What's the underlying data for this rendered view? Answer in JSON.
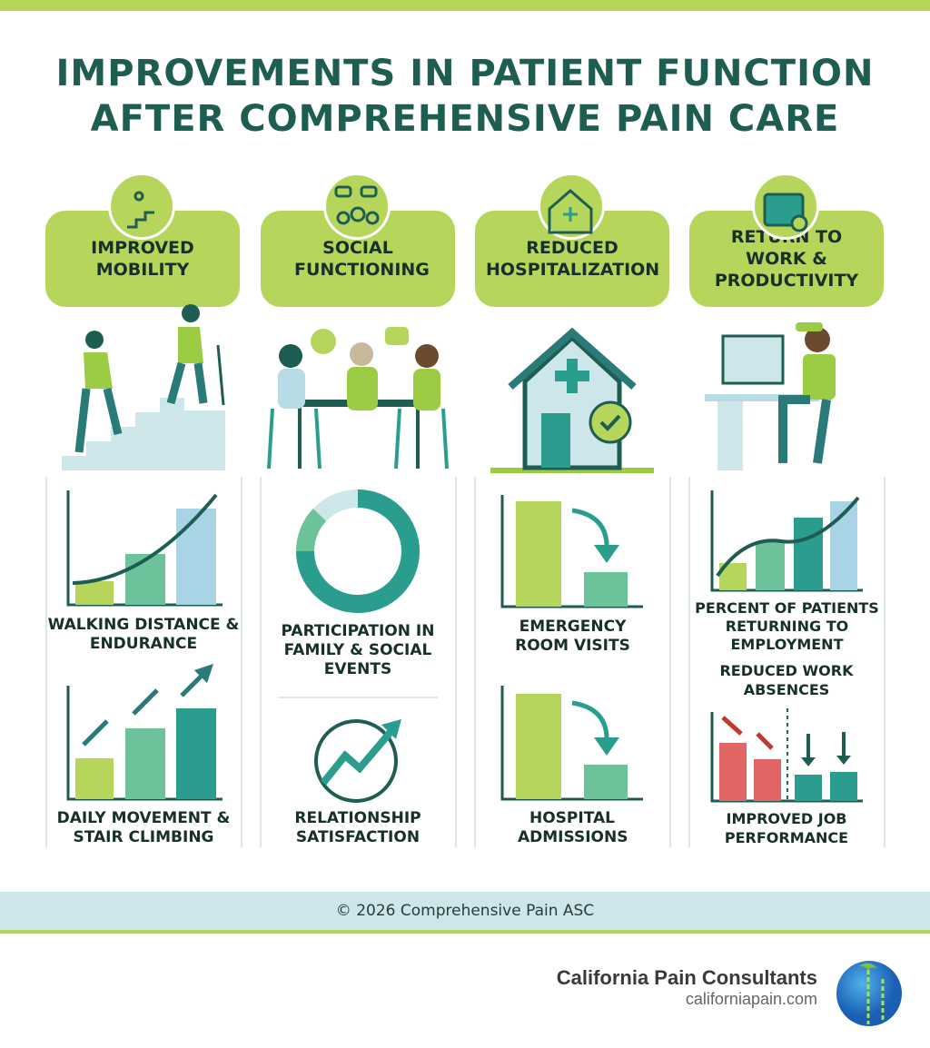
{
  "header": {
    "title_lines": [
      "IMPROVEMENTS IN PATIENT FUNCTION",
      "AFTER COMPREHENSIVE PAIN CARE"
    ]
  },
  "columns": [
    {
      "heading": "IMPROVED MOBILITY",
      "metrics": [
        "WALKING DISTANCE & ENDURANCE",
        "DAILY MOVEMENT & STAIR CLIMBING"
      ]
    },
    {
      "heading": "SOCIAL FUNCTIONING",
      "metrics": [
        "PARTICIPATION IN FAMILY & SOCIAL EVENTS",
        "RELATIONSHIP SATISFACTION"
      ]
    },
    {
      "heading": "REDUCED HOSPITALIZATION",
      "metrics": [
        "EMERGENCY ROOM VISITS",
        "HOSPITAL ADMISSIONS"
      ]
    },
    {
      "heading": "RETURN TO WORK & PRODUCTIVITY",
      "metrics": [
        "PERCENT OF PATIENTS RETURNING TO EMPLOYMENT",
        "REDUCED WORK ABSENCES",
        "IMPROVED JOB PERFORMANCE"
      ]
    }
  ],
  "footer": {
    "copyright": "© 2026 Comprehensive Pain ASC"
  },
  "brand": {
    "name": "California Pain Consultants",
    "url": "californiapain.com"
  }
}
